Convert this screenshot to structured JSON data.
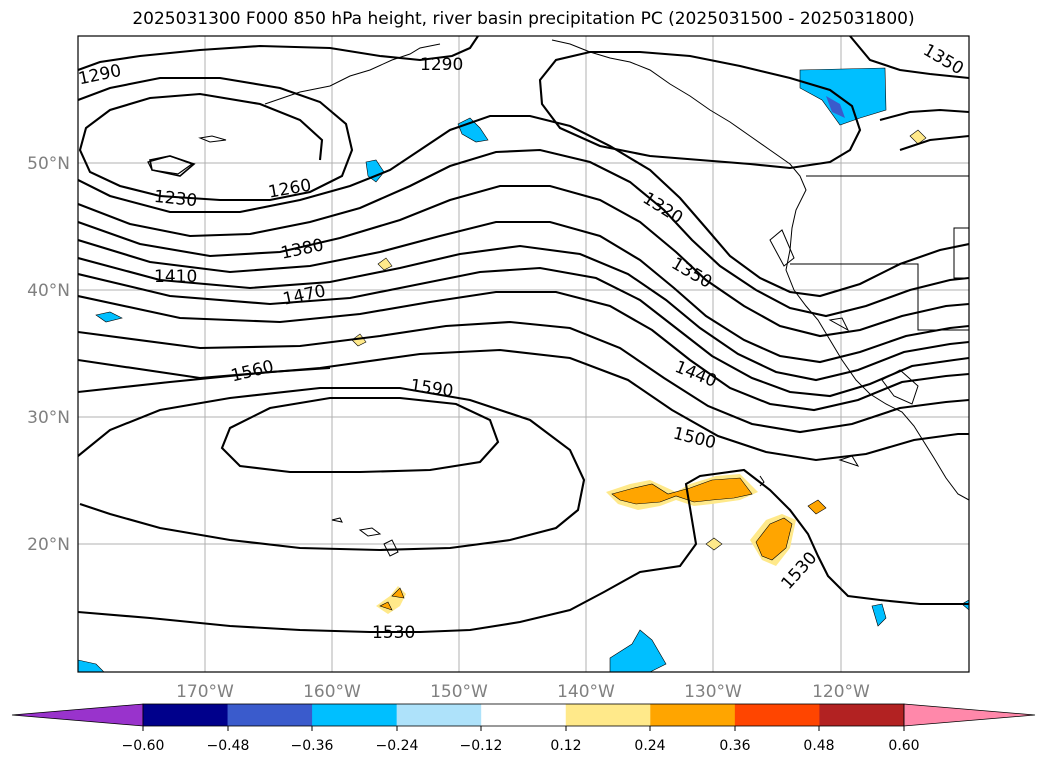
{
  "title": "2025031300 F000 850 hPa height, river basin precipitation PC (2025031500 - 2025031800)",
  "map": {
    "lat_labels": [
      "50°N",
      "40°N",
      "30°N",
      "20°N"
    ],
    "lon_labels": [
      "170°W",
      "160°W",
      "150°W",
      "140°W",
      "130°W",
      "120°W"
    ],
    "contour_labels": [
      "1290",
      "1290",
      "1350",
      "1230",
      "1260",
      "1320",
      "1380",
      "1410",
      "1470",
      "1350",
      "1560",
      "1590",
      "1440",
      "1500",
      "1530",
      "1530"
    ]
  },
  "colorbar": {
    "tick_labels": [
      "−0.60",
      "−0.48",
      "−0.36",
      "−0.24",
      "−0.12",
      "0.12",
      "0.24",
      "0.36",
      "0.48",
      "0.60"
    ],
    "colors": [
      "#9933cc",
      "#00008b",
      "#3a5bcc",
      "#00bfff",
      "#aee2fa",
      "#ffffff",
      "#ffe98a",
      "#ffa500",
      "#ff4500",
      "#b22222",
      "#ff88aa"
    ]
  }
}
